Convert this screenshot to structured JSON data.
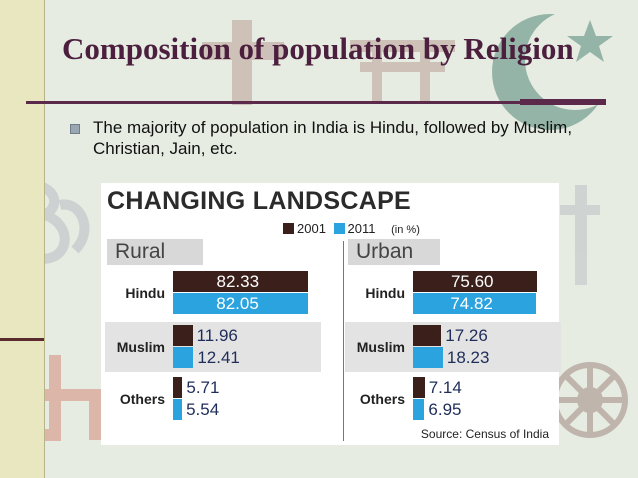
{
  "slide": {
    "title": "Composition of population by Religion",
    "bullet": "The majority of population in India is Hindu, followed by Muslim, Christian, Jain, etc."
  },
  "colors": {
    "y2001": "#3a1f1a",
    "y2011": "#2ba3de",
    "band": "#e3e3e3",
    "accent": "#5b2a4a"
  },
  "background_icons": [
    "om-icon",
    "cross-icon",
    "torii-icon",
    "crescent-star-icon",
    "swastika-icon",
    "dharma-wheel-icon",
    "khanda-icon"
  ],
  "chart_data": {
    "type": "bar",
    "orientation": "horizontal",
    "title": "CHANGING LANDSCAPE",
    "unit": "(in %)",
    "source": "Source: Census of India",
    "legend": [
      "2001",
      "2011"
    ],
    "panels": [
      {
        "name": "Rural",
        "categories": [
          "Hindu",
          "Muslim",
          "Others"
        ],
        "series": [
          {
            "name": "2001",
            "values": [
              82.33,
              11.96,
              5.71
            ]
          },
          {
            "name": "2011",
            "values": [
              82.05,
              12.41,
              5.54
            ]
          }
        ]
      },
      {
        "name": "Urban",
        "categories": [
          "Hindu",
          "Muslim",
          "Others"
        ],
        "series": [
          {
            "name": "2001",
            "values": [
              75.6,
              17.26,
              7.14
            ]
          },
          {
            "name": "2011",
            "values": [
              74.82,
              18.23,
              6.95
            ]
          }
        ]
      }
    ]
  }
}
